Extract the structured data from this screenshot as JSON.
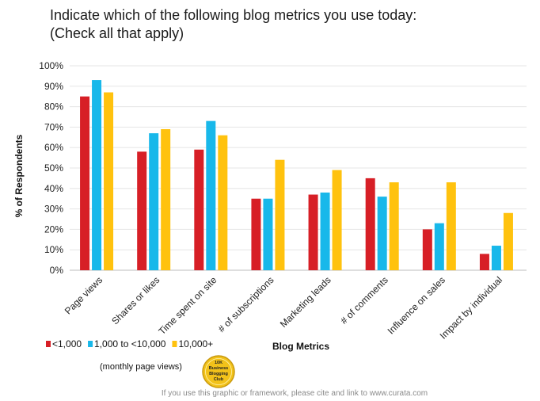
{
  "chart_data": {
    "type": "bar",
    "title_lines": [
      "Indicate which of the following blog metrics you use today:",
      "(Check all that apply)"
    ],
    "xlabel": "Blog Metrics",
    "ylabel": "% of Respondents",
    "ylim": [
      0,
      100
    ],
    "yticks": [
      "0%",
      "10%",
      "20%",
      "30%",
      "40%",
      "50%",
      "60%",
      "70%",
      "80%",
      "90%",
      "100%"
    ],
    "grid": true,
    "categories": [
      "Page views",
      "Shares or likes",
      "Time spent on site",
      "# of subscriptions",
      "Marketing leads",
      "# of comments",
      "Influence on sales",
      "Impact by individual"
    ],
    "series": [
      {
        "name": "<1,000",
        "color": "#d71f26",
        "values": [
          85,
          58,
          59,
          35,
          37,
          45,
          20,
          8
        ]
      },
      {
        "name": "1,000 to <10,000",
        "color": "#18b8ea",
        "values": [
          93,
          67,
          73,
          35,
          38,
          36,
          23,
          12
        ]
      },
      {
        "name": "10,000+",
        "color": "#ffc20e",
        "values": [
          87,
          69,
          66,
          54,
          49,
          43,
          43,
          28
        ]
      }
    ],
    "legend_note": "(monthly page views)",
    "legend_position": "bottom-left"
  },
  "badge": {
    "lines": [
      "10K",
      "Business",
      "Blogging",
      "Club"
    ]
  },
  "footer": "If you use this graphic or framework, please cite and link to www.curata.com"
}
